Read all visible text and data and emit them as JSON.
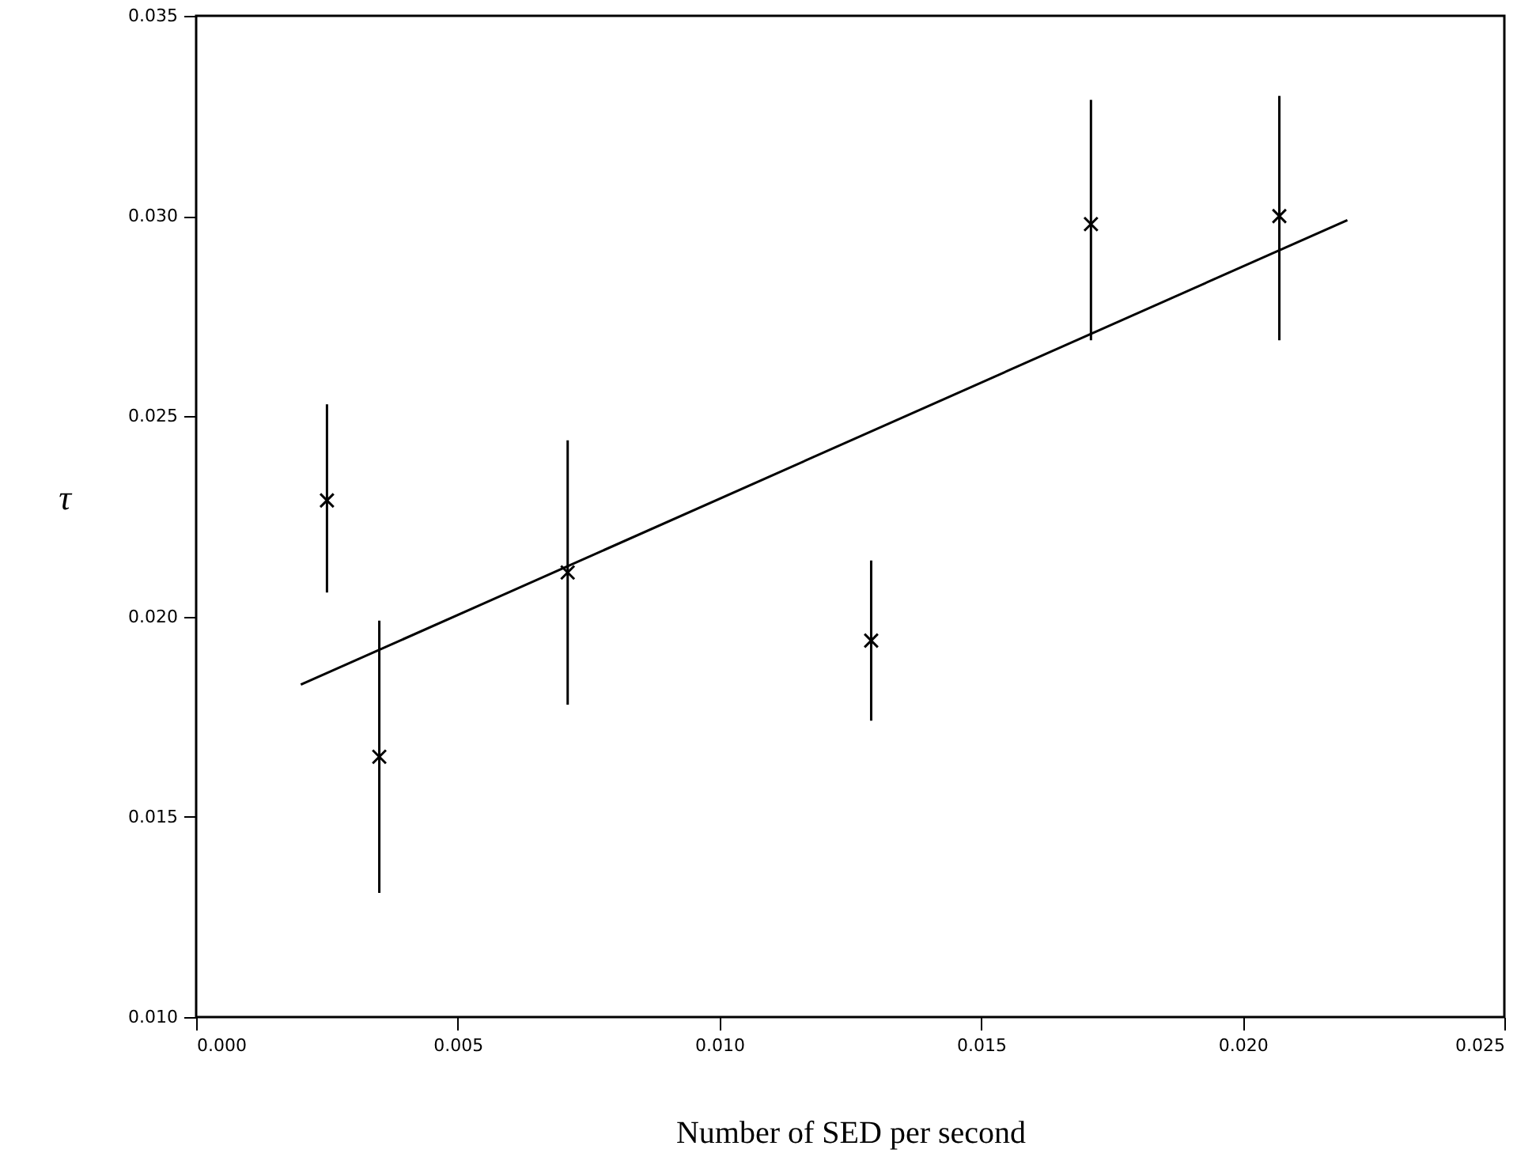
{
  "chart_data": {
    "type": "scatter",
    "xlabel": "Number of SED per second",
    "ylabel": "τ",
    "xlim": [
      0,
      0.025
    ],
    "xticks": [
      {
        "value": 0,
        "label": "0.000"
      },
      {
        "value": 0.005,
        "label": "0.005"
      },
      {
        "value": 0.01,
        "label": "0.010"
      },
      {
        "value": 0.015,
        "label": "0.015"
      },
      {
        "value": 0.02,
        "label": "0.020"
      },
      {
        "value": 0.025,
        "label": "0.025"
      }
    ],
    "ylim": [
      0.01,
      0.035
    ],
    "yticks": [
      {
        "value": 0.01,
        "label": "0.010"
      },
      {
        "value": 0.015,
        "label": "0.015"
      },
      {
        "value": 0.02,
        "label": "0.020"
      },
      {
        "value": 0.025,
        "label": "0.025"
      },
      {
        "value": 0.03,
        "label": "0.030"
      },
      {
        "value": 0.035,
        "label": "0.035"
      }
    ],
    "grid": false,
    "series": [
      {
        "marker": "cross",
        "color": "#000000",
        "x": [
          0.0025,
          0.0035,
          0.0071,
          0.0129,
          0.0171,
          0.0207
        ],
        "values": [
          0.0229,
          0.0165,
          0.0211,
          0.0194,
          0.0298,
          0.03
        ],
        "errors": [
          [
            0.0206,
            0.0253
          ],
          [
            0.0131,
            0.0199
          ],
          [
            0.0178,
            0.0244
          ],
          [
            0.0174,
            0.0214
          ],
          [
            0.0269,
            0.0329
          ],
          [
            0.0269,
            0.033
          ]
        ]
      },
      {
        "type": "line",
        "marker": "none",
        "color": "#000000",
        "x": [
          0.002,
          0.022
        ],
        "values": [
          0.0183,
          0.0299
        ]
      }
    ]
  }
}
